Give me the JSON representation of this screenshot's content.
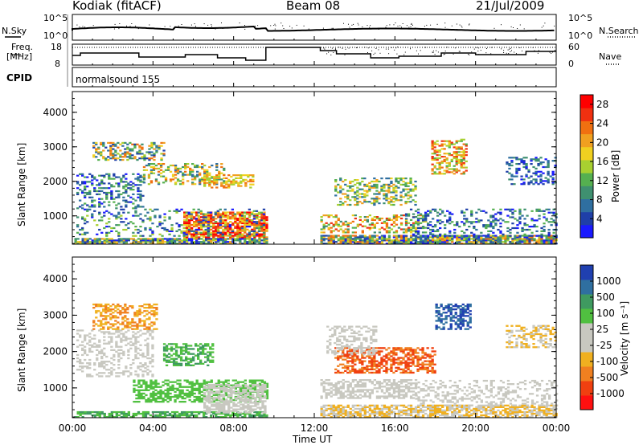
{
  "header": {
    "station": "Kodiak (fitACF)",
    "beam": "Beam 08",
    "date": "21/Jul/2009"
  },
  "aux_panels": {
    "nsky_label": "N.Sky",
    "nsearch_label": "N.Search",
    "nsky_ticks": [
      "10^5",
      "10^0"
    ],
    "nsearch_ticks": [
      "10^5",
      "10^0"
    ],
    "freq_label_1": "Freq.",
    "freq_label_2": "[MHz]",
    "freq_ticks": [
      "18",
      "8"
    ],
    "nave_label": "Nave",
    "nave_ticks": [
      "60",
      "0"
    ],
    "cpid_label": "CPID",
    "cpid_value": "normalsound 155"
  },
  "colors": {
    "power": [
      "#1a1aff",
      "#1f3fa8",
      "#2f6fa0",
      "#3f9070",
      "#55b050",
      "#a8d030",
      "#f0d020",
      "#f0a020",
      "#f07010",
      "#f03010",
      "#ff0000"
    ],
    "velocity": [
      "#ff1010",
      "#f04010",
      "#f08020",
      "#f0b020",
      "#c8c8c0",
      "#c8c8c0",
      "#50c040",
      "#3f9a60",
      "#2f6fa0",
      "#2040b0"
    ]
  },
  "chart_data": [
    {
      "type": "heatmap",
      "title": "",
      "ylabel": "Slant Range [km]",
      "xlabel": "",
      "x_ticks": [
        "00:00",
        "04:00",
        "08:00",
        "12:00",
        "16:00",
        "20:00",
        "00:00"
      ],
      "x_hours": [
        0,
        4,
        8,
        12,
        16,
        20,
        24
      ],
      "y_ticks": [
        1000,
        2000,
        3000,
        4000
      ],
      "ylim": [
        180,
        4600
      ],
      "xlim": [
        0,
        24
      ],
      "data_gap_hours": [
        9.6,
        12.3
      ],
      "colorbar_label": "Power [dB]",
      "colorbar_ticks": [
        4,
        8,
        12,
        16,
        20,
        24,
        28
      ],
      "colorbar_range": [
        0,
        30
      ]
    },
    {
      "type": "heatmap",
      "title": "",
      "ylabel": "Slant Range [km]",
      "xlabel": "Time UT",
      "x_ticks": [
        "00:00",
        "04:00",
        "08:00",
        "12:00",
        "16:00",
        "20:00",
        "00:00"
      ],
      "x_hours": [
        0,
        4,
        8,
        12,
        16,
        20,
        24
      ],
      "y_ticks": [
        1000,
        2000,
        3000,
        4000
      ],
      "ylim": [
        180,
        4600
      ],
      "xlim": [
        0,
        24
      ],
      "data_gap_hours": [
        9.6,
        12.3
      ],
      "colorbar_label": "Velocity [m s⁻¹]",
      "colorbar_ticks": [
        1000,
        500,
        100,
        25,
        -25,
        -100,
        -500,
        -1000
      ]
    }
  ]
}
